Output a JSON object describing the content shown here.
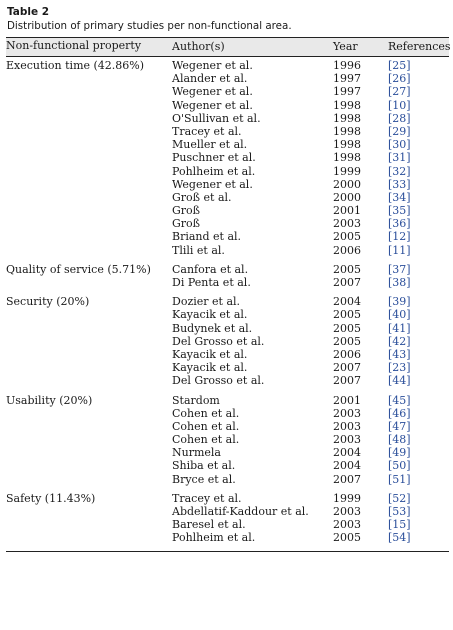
{
  "table": {
    "label": "Table 2",
    "caption": "Distribution of primary studies per non-functional area.",
    "columns": {
      "property": "Non-functional property",
      "authors": "Author(s)",
      "year": "Year",
      "references": "References"
    },
    "sections": [
      {
        "property": "Execution time (42.86%)",
        "rows": [
          {
            "author": "Wegener et al.",
            "year": "1996",
            "ref": "[25]"
          },
          {
            "author": "Alander et al.",
            "year": "1997",
            "ref": "[26]"
          },
          {
            "author": "Wegener et al.",
            "year": "1997",
            "ref": "[27]"
          },
          {
            "author": "Wegener et al.",
            "year": "1998",
            "ref": "[10]"
          },
          {
            "author": "O'Sullivan et al.",
            "year": "1998",
            "ref": "[28]"
          },
          {
            "author": "Tracey et al.",
            "year": "1998",
            "ref": "[29]"
          },
          {
            "author": "Mueller et al.",
            "year": "1998",
            "ref": "[30]"
          },
          {
            "author": "Puschner et al.",
            "year": "1998",
            "ref": "[31]"
          },
          {
            "author": "Pohlheim et al.",
            "year": "1999",
            "ref": "[32]"
          },
          {
            "author": "Wegener et al.",
            "year": "2000",
            "ref": "[33]"
          },
          {
            "author": "Groß et al.",
            "year": "2000",
            "ref": "[34]"
          },
          {
            "author": "Groß",
            "year": "2001",
            "ref": "[35]"
          },
          {
            "author": "Groß",
            "year": "2003",
            "ref": "[36]"
          },
          {
            "author": "Briand et al.",
            "year": "2005",
            "ref": "[12]"
          },
          {
            "author": "Tlili et al.",
            "year": "2006",
            "ref": "[11]"
          }
        ]
      },
      {
        "property": "Quality of service (5.71%)",
        "rows": [
          {
            "author": "Canfora et al.",
            "year": "2005",
            "ref": "[37]"
          },
          {
            "author": "Di Penta et al.",
            "year": "2007",
            "ref": "[38]"
          }
        ]
      },
      {
        "property": "Security (20%)",
        "rows": [
          {
            "author": "Dozier et al.",
            "year": "2004",
            "ref": "[39]"
          },
          {
            "author": "Kayacik et al.",
            "year": "2005",
            "ref": "[40]"
          },
          {
            "author": "Budynek et al.",
            "year": "2005",
            "ref": "[41]"
          },
          {
            "author": "Del Grosso et al.",
            "year": "2005",
            "ref": "[42]"
          },
          {
            "author": "Kayacik et al.",
            "year": "2006",
            "ref": "[43]"
          },
          {
            "author": "Kayacik et al.",
            "year": "2007",
            "ref": "[23]"
          },
          {
            "author": "Del Grosso et al.",
            "year": "2007",
            "ref": "[44]"
          }
        ]
      },
      {
        "property": "Usability (20%)",
        "rows": [
          {
            "author": "Stardom",
            "year": "2001",
            "ref": "[45]"
          },
          {
            "author": "Cohen et al.",
            "year": "2003",
            "ref": "[46]"
          },
          {
            "author": "Cohen et al.",
            "year": "2003",
            "ref": "[47]"
          },
          {
            "author": "Cohen et al.",
            "year": "2003",
            "ref": "[48]"
          },
          {
            "author": "Nurmela",
            "year": "2004",
            "ref": "[49]"
          },
          {
            "author": "Shiba et al.",
            "year": "2004",
            "ref": "[50]"
          },
          {
            "author": "Bryce et al.",
            "year": "2007",
            "ref": "[51]"
          }
        ]
      },
      {
        "property": "Safety (11.43%)",
        "rows": [
          {
            "author": "Tracey et al.",
            "year": "1999",
            "ref": "[52]"
          },
          {
            "author": "Abdellatif-Kaddour et al.",
            "year": "2003",
            "ref": "[53]"
          },
          {
            "author": "Baresel et al.",
            "year": "2003",
            "ref": "[15]"
          },
          {
            "author": "Pohlheim et al.",
            "year": "2005",
            "ref": "[54]"
          }
        ]
      }
    ]
  }
}
